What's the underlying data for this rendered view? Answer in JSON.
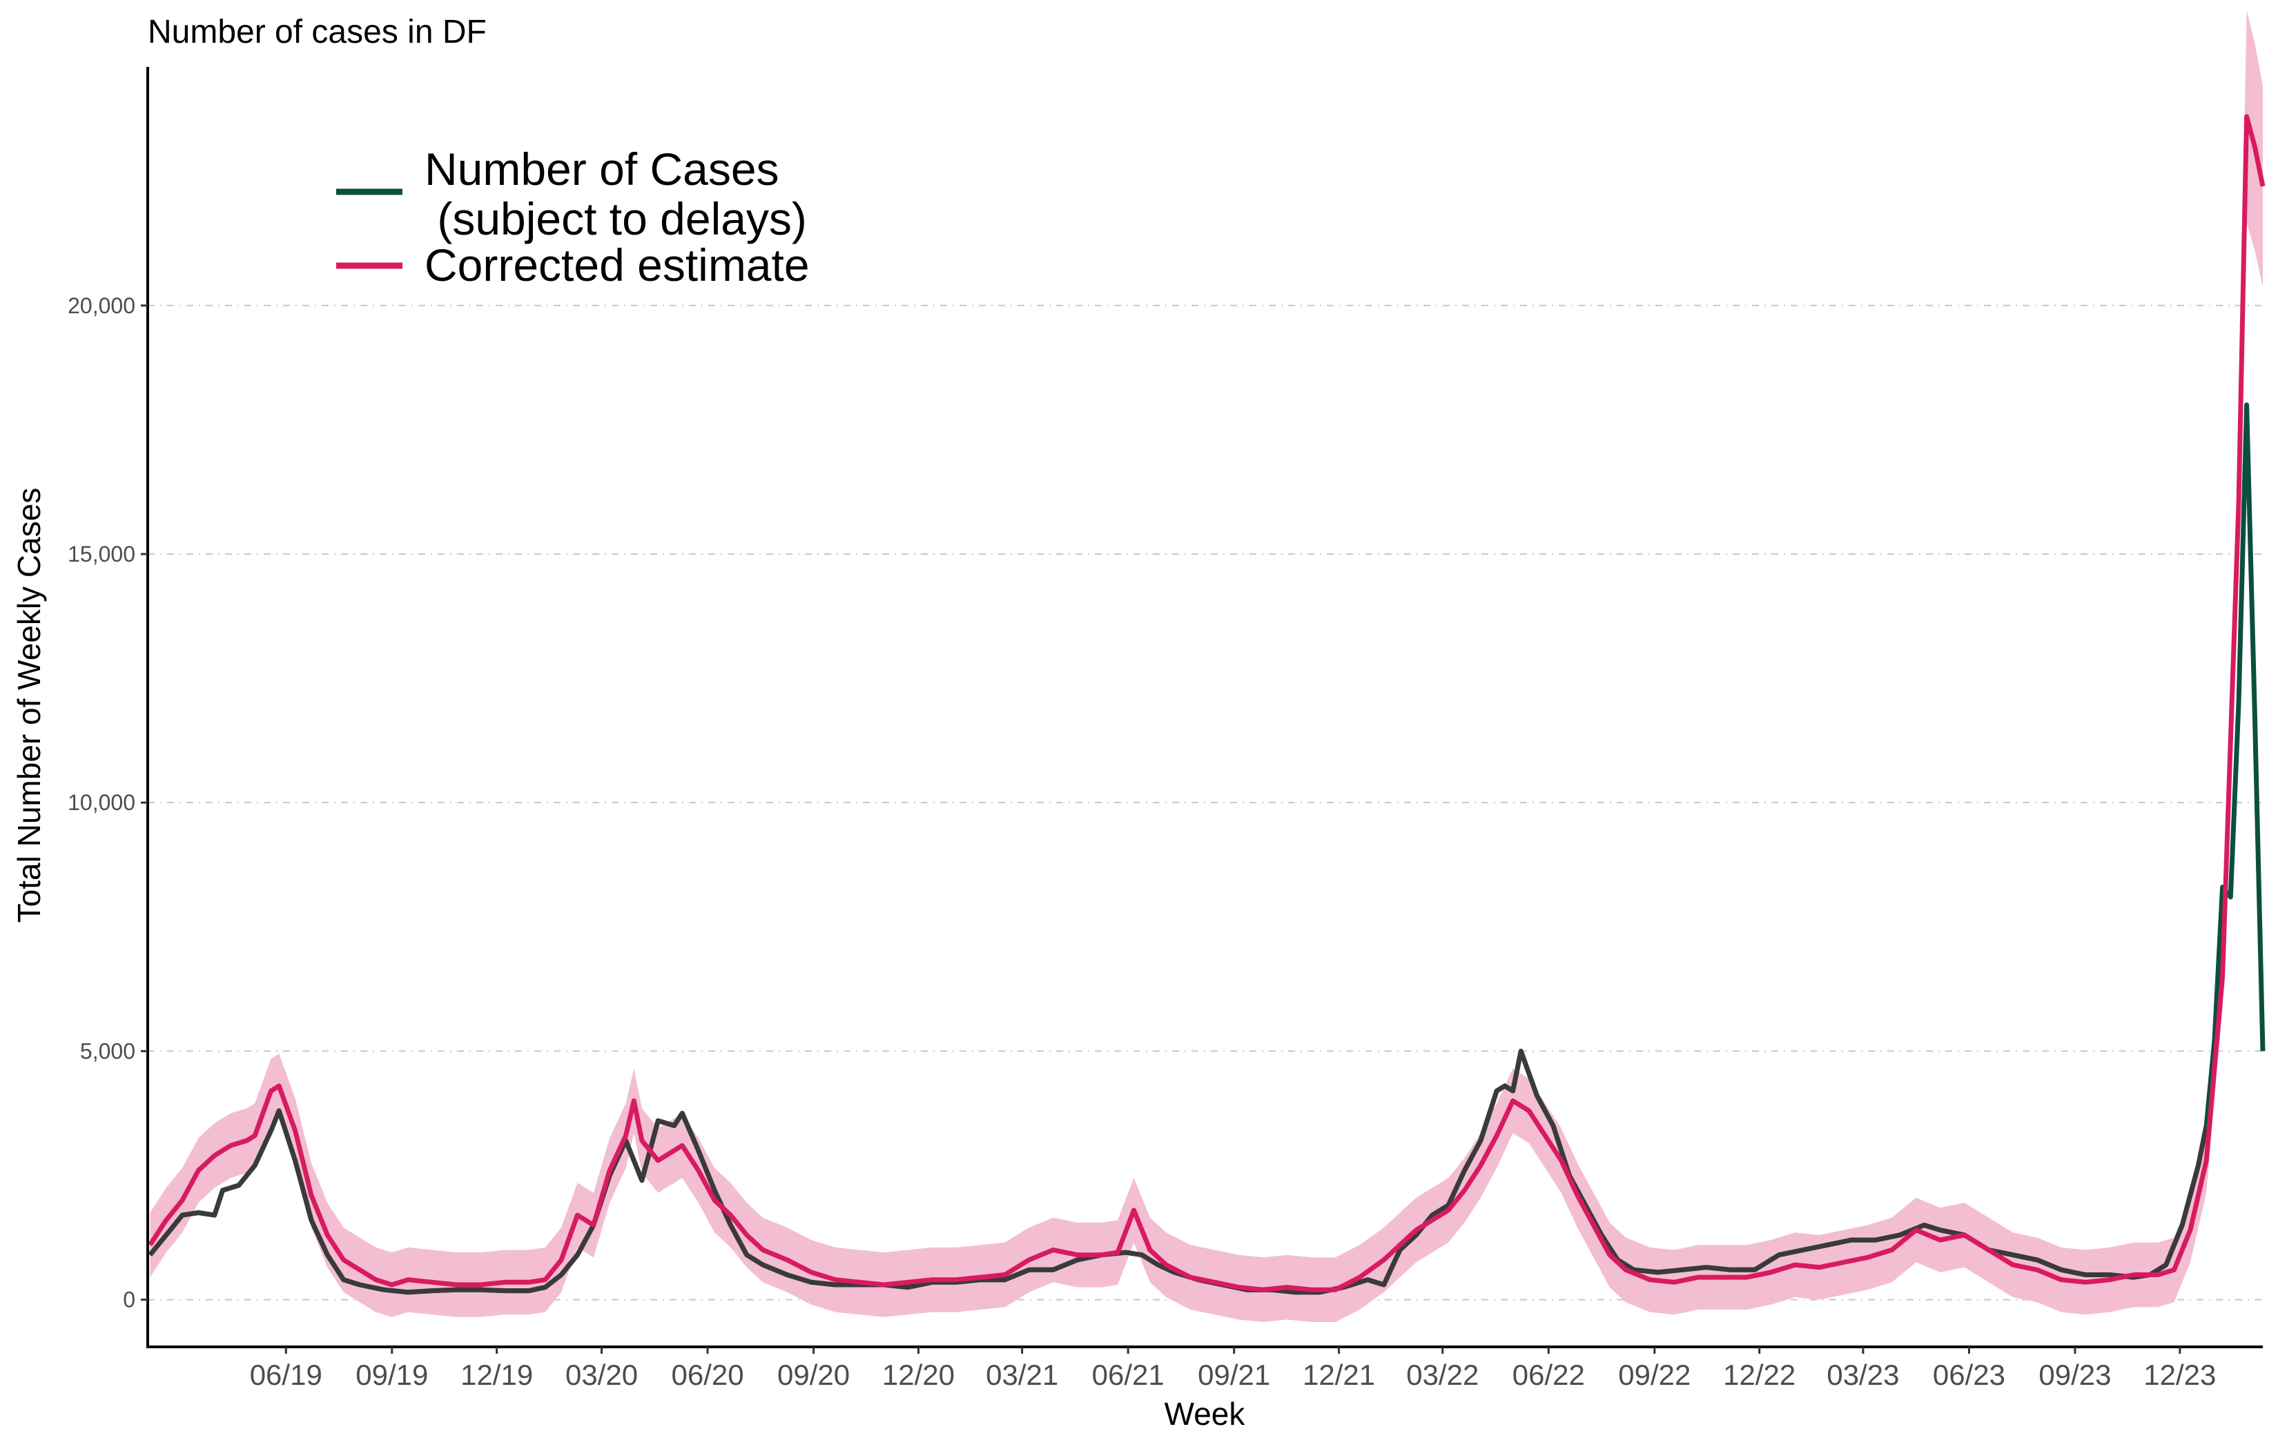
{
  "chart_data": {
    "type": "line",
    "title": "Number of cases in DF",
    "xlabel": "Week",
    "ylabel": "Total Number of Weekly Cases",
    "x_tick_labels": [
      "06/19",
      "09/19",
      "12/19",
      "03/20",
      "06/20",
      "09/20",
      "12/20",
      "03/21",
      "06/21",
      "09/21",
      "12/21",
      "03/22",
      "06/22",
      "09/22",
      "12/22",
      "03/23",
      "06/23",
      "09/23",
      "12/23"
    ],
    "y_ticks": [
      0,
      5000,
      10000,
      15000,
      20000
    ],
    "y_tick_labels": [
      "0",
      "5,000",
      "10,000",
      "15,000",
      "20,000"
    ],
    "ylim": [
      -950,
      24800
    ],
    "xlim": [
      "2019-02-01",
      "2024-02-11"
    ],
    "grid": "horizontal dashed",
    "legend_position": "top-left",
    "legend": [
      {
        "name_line1": "Number of Cases",
        "name_line2": " (subject to delays)",
        "color": "#0b4f3e"
      },
      {
        "name_line1": "Corrected estimate",
        "color": "#d81b60"
      }
    ],
    "colors": {
      "observed": "#0b4f3e",
      "observed_early": "#3a3a3a",
      "corrected": "#d81b60",
      "band": "#f2bad0"
    },
    "observed_series": {
      "name": "Number of Cases (subject to delays)",
      "points": [
        [
          "2019-02-03",
          900
        ],
        [
          "2019-02-17",
          1300
        ],
        [
          "2019-03-03",
          1700
        ],
        [
          "2019-03-17",
          1750
        ],
        [
          "2019-03-31",
          1700
        ],
        [
          "2019-04-07",
          2200
        ],
        [
          "2019-04-21",
          2300
        ],
        [
          "2019-05-05",
          2700
        ],
        [
          "2019-05-19",
          3400
        ],
        [
          "2019-05-26",
          3800
        ],
        [
          "2019-06-09",
          2800
        ],
        [
          "2019-06-23",
          1600
        ],
        [
          "2019-07-07",
          900
        ],
        [
          "2019-07-21",
          400
        ],
        [
          "2019-08-04",
          300
        ],
        [
          "2019-08-25",
          200
        ],
        [
          "2019-09-15",
          150
        ],
        [
          "2019-10-06",
          180
        ],
        [
          "2019-10-27",
          200
        ],
        [
          "2019-11-17",
          200
        ],
        [
          "2019-12-08",
          180
        ],
        [
          "2019-12-29",
          180
        ],
        [
          "2020-01-12",
          250
        ],
        [
          "2020-01-26",
          500
        ],
        [
          "2020-02-09",
          900
        ],
        [
          "2020-02-23",
          1500
        ],
        [
          "2020-03-08",
          2500
        ],
        [
          "2020-03-22",
          3200
        ],
        [
          "2020-04-05",
          2400
        ],
        [
          "2020-04-19",
          3600
        ],
        [
          "2020-05-03",
          3500
        ],
        [
          "2020-05-10",
          3750
        ],
        [
          "2020-05-24",
          3000
        ],
        [
          "2020-06-07",
          2200
        ],
        [
          "2020-06-21",
          1500
        ],
        [
          "2020-07-05",
          900
        ],
        [
          "2020-07-19",
          700
        ],
        [
          "2020-08-09",
          500
        ],
        [
          "2020-08-30",
          350
        ],
        [
          "2020-09-20",
          300
        ],
        [
          "2020-10-11",
          300
        ],
        [
          "2020-11-01",
          300
        ],
        [
          "2020-11-22",
          250
        ],
        [
          "2020-12-13",
          350
        ],
        [
          "2021-01-03",
          350
        ],
        [
          "2021-01-24",
          400
        ],
        [
          "2021-02-14",
          400
        ],
        [
          "2021-03-07",
          600
        ],
        [
          "2021-03-28",
          600
        ],
        [
          "2021-04-18",
          800
        ],
        [
          "2021-05-09",
          900
        ],
        [
          "2021-05-30",
          950
        ],
        [
          "2021-06-13",
          900
        ],
        [
          "2021-06-27",
          700
        ],
        [
          "2021-07-11",
          550
        ],
        [
          "2021-08-01",
          400
        ],
        [
          "2021-08-22",
          300
        ],
        [
          "2021-09-12",
          200
        ],
        [
          "2021-10-03",
          200
        ],
        [
          "2021-10-24",
          150
        ],
        [
          "2021-11-14",
          150
        ],
        [
          "2021-12-05",
          250
        ],
        [
          "2021-12-26",
          400
        ],
        [
          "2022-01-09",
          300
        ],
        [
          "2022-01-23",
          1000
        ],
        [
          "2022-02-06",
          1300
        ],
        [
          "2022-02-20",
          1700
        ],
        [
          "2022-03-06",
          1900
        ],
        [
          "2022-03-20",
          2600
        ],
        [
          "2022-04-03",
          3200
        ],
        [
          "2022-04-17",
          4200
        ],
        [
          "2022-04-24",
          4300
        ],
        [
          "2022-05-01",
          4200
        ],
        [
          "2022-05-08",
          5000
        ],
        [
          "2022-05-22",
          4100
        ],
        [
          "2022-06-05",
          3500
        ],
        [
          "2022-06-19",
          2500
        ],
        [
          "2022-07-03",
          1900
        ],
        [
          "2022-07-17",
          1300
        ],
        [
          "2022-07-31",
          800
        ],
        [
          "2022-08-14",
          600
        ],
        [
          "2022-09-04",
          550
        ],
        [
          "2022-09-25",
          600
        ],
        [
          "2022-10-16",
          650
        ],
        [
          "2022-11-06",
          600
        ],
        [
          "2022-11-27",
          600
        ],
        [
          "2022-12-18",
          900
        ],
        [
          "2023-01-08",
          1000
        ],
        [
          "2023-01-29",
          1100
        ],
        [
          "2023-02-19",
          1200
        ],
        [
          "2023-03-12",
          1200
        ],
        [
          "2023-04-02",
          1300
        ],
        [
          "2023-04-23",
          1500
        ],
        [
          "2023-05-07",
          1400
        ],
        [
          "2023-05-28",
          1300
        ],
        [
          "2023-06-18",
          1000
        ],
        [
          "2023-07-09",
          900
        ],
        [
          "2023-07-30",
          800
        ],
        [
          "2023-08-20",
          600
        ],
        [
          "2023-09-10",
          500
        ],
        [
          "2023-10-01",
          500
        ],
        [
          "2023-10-22",
          450
        ],
        [
          "2023-11-05",
          500
        ],
        [
          "2023-11-19",
          700
        ],
        [
          "2023-12-03",
          1500
        ],
        [
          "2023-12-17",
          2700
        ],
        [
          "2023-12-24",
          3500
        ],
        [
          "2023-12-31",
          5200
        ],
        [
          "2024-01-07",
          8300
        ],
        [
          "2024-01-14",
          8100
        ],
        [
          "2024-01-21",
          12000
        ],
        [
          "2024-01-28",
          18000
        ],
        [
          "2024-02-04",
          11800
        ],
        [
          "2024-02-11",
          5000
        ]
      ]
    },
    "corrected_series": {
      "name": "Corrected estimate",
      "points": [
        [
          "2019-02-03",
          1100
        ],
        [
          "2019-02-17",
          1600
        ],
        [
          "2019-03-03",
          2000
        ],
        [
          "2019-03-17",
          2600
        ],
        [
          "2019-03-31",
          2900
        ],
        [
          "2019-04-14",
          3100
        ],
        [
          "2019-04-28",
          3200
        ],
        [
          "2019-05-05",
          3300
        ],
        [
          "2019-05-19",
          4200
        ],
        [
          "2019-05-26",
          4300
        ],
        [
          "2019-06-09",
          3400
        ],
        [
          "2019-06-23",
          2100
        ],
        [
          "2019-07-07",
          1300
        ],
        [
          "2019-07-21",
          800
        ],
        [
          "2019-08-04",
          600
        ],
        [
          "2019-08-18",
          400
        ],
        [
          "2019-09-01",
          300
        ],
        [
          "2019-09-15",
          400
        ],
        [
          "2019-10-06",
          350
        ],
        [
          "2019-10-27",
          300
        ],
        [
          "2019-11-17",
          300
        ],
        [
          "2019-12-08",
          350
        ],
        [
          "2019-12-29",
          350
        ],
        [
          "2020-01-12",
          400
        ],
        [
          "2020-01-26",
          800
        ],
        [
          "2020-02-09",
          1700
        ],
        [
          "2020-02-23",
          1500
        ],
        [
          "2020-03-08",
          2600
        ],
        [
          "2020-03-22",
          3300
        ],
        [
          "2020-03-29",
          4000
        ],
        [
          "2020-04-05",
          3200
        ],
        [
          "2020-04-19",
          2800
        ],
        [
          "2020-05-03",
          3000
        ],
        [
          "2020-05-10",
          3100
        ],
        [
          "2020-05-24",
          2600
        ],
        [
          "2020-06-07",
          2000
        ],
        [
          "2020-06-21",
          1700
        ],
        [
          "2020-07-05",
          1300
        ],
        [
          "2020-07-19",
          1000
        ],
        [
          "2020-08-09",
          800
        ],
        [
          "2020-08-30",
          550
        ],
        [
          "2020-09-20",
          400
        ],
        [
          "2020-10-11",
          350
        ],
        [
          "2020-11-01",
          300
        ],
        [
          "2020-11-22",
          350
        ],
        [
          "2020-12-13",
          400
        ],
        [
          "2021-01-03",
          400
        ],
        [
          "2021-01-24",
          450
        ],
        [
          "2021-02-14",
          500
        ],
        [
          "2021-03-07",
          800
        ],
        [
          "2021-03-28",
          1000
        ],
        [
          "2021-04-18",
          900
        ],
        [
          "2021-05-09",
          900
        ],
        [
          "2021-05-23",
          950
        ],
        [
          "2021-06-06",
          1800
        ],
        [
          "2021-06-20",
          1000
        ],
        [
          "2021-07-04",
          700
        ],
        [
          "2021-07-25",
          450
        ],
        [
          "2021-08-15",
          350
        ],
        [
          "2021-09-05",
          250
        ],
        [
          "2021-09-26",
          200
        ],
        [
          "2021-10-17",
          250
        ],
        [
          "2021-11-07",
          200
        ],
        [
          "2021-11-28",
          200
        ],
        [
          "2021-12-19",
          450
        ],
        [
          "2022-01-09",
          800
        ],
        [
          "2022-01-23",
          1100
        ],
        [
          "2022-02-06",
          1400
        ],
        [
          "2022-02-20",
          1600
        ],
        [
          "2022-03-06",
          1800
        ],
        [
          "2022-03-20",
          2200
        ],
        [
          "2022-04-03",
          2700
        ],
        [
          "2022-04-17",
          3300
        ],
        [
          "2022-05-01",
          4000
        ],
        [
          "2022-05-15",
          3800
        ],
        [
          "2022-05-29",
          3300
        ],
        [
          "2022-06-12",
          2800
        ],
        [
          "2022-06-26",
          2100
        ],
        [
          "2022-07-10",
          1500
        ],
        [
          "2022-07-24",
          900
        ],
        [
          "2022-08-07",
          600
        ],
        [
          "2022-08-28",
          400
        ],
        [
          "2022-09-18",
          350
        ],
        [
          "2022-10-09",
          450
        ],
        [
          "2022-10-30",
          450
        ],
        [
          "2022-11-20",
          450
        ],
        [
          "2022-12-11",
          550
        ],
        [
          "2023-01-01",
          700
        ],
        [
          "2023-01-22",
          650
        ],
        [
          "2023-02-12",
          750
        ],
        [
          "2023-03-05",
          850
        ],
        [
          "2023-03-26",
          1000
        ],
        [
          "2023-04-16",
          1400
        ],
        [
          "2023-05-07",
          1200
        ],
        [
          "2023-05-28",
          1300
        ],
        [
          "2023-06-18",
          1000
        ],
        [
          "2023-07-09",
          700
        ],
        [
          "2023-07-30",
          600
        ],
        [
          "2023-08-20",
          400
        ],
        [
          "2023-09-10",
          350
        ],
        [
          "2023-10-01",
          400
        ],
        [
          "2023-10-22",
          500
        ],
        [
          "2023-11-12",
          500
        ],
        [
          "2023-11-26",
          600
        ],
        [
          "2023-12-10",
          1400
        ],
        [
          "2023-12-24",
          2800
        ],
        [
          "2024-01-07",
          6500
        ],
        [
          "2024-01-21",
          16000
        ],
        [
          "2024-01-28",
          23800
        ],
        [
          "2024-02-04",
          23200
        ],
        [
          "2024-02-11",
          22400
        ]
      ]
    }
  }
}
